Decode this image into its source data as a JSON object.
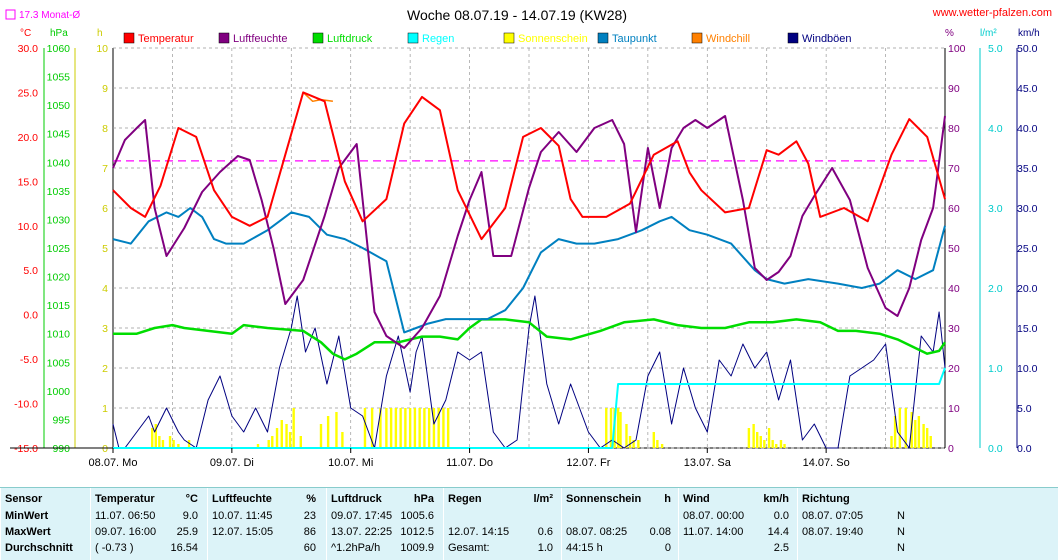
{
  "title": "Woche 08.07.19 - 14.07.19 (KW28)",
  "site": "www.wetter-pfalzen.com",
  "month_avg_label": "17.3 Monat-Ø",
  "left_units": {
    "temp": "°C",
    "pressure": "hPa",
    "sun": "h"
  },
  "right_units": {
    "humidity": "%",
    "rain": "l/m²",
    "wind": "km/h"
  },
  "legend": [
    {
      "label": "Temperatur",
      "color": "#ff0000"
    },
    {
      "label": "Luftfeuchte",
      "color": "#800080"
    },
    {
      "label": "Luftdruck",
      "color": "#00dd00"
    },
    {
      "label": "Regen",
      "color": "#00ffff"
    },
    {
      "label": "Sonnenschein",
      "color": "#ffff00"
    },
    {
      "label": "Taupunkt",
      "color": "#0080c0"
    },
    {
      "label": "Windchill",
      "color": "#ff8000"
    },
    {
      "label": "Windböen",
      "color": "#000080"
    }
  ],
  "chart_data": {
    "type": "line",
    "x_tick_labels": [
      "08.07. Mo",
      "09.07. Di",
      "10.07. Mi",
      "11.07. Do",
      "12.07. Fr",
      "13.07. Sa",
      "14.07. So"
    ],
    "axes": {
      "temp": {
        "ticks": [
          "30.0",
          "25.0",
          "20.0",
          "15.0",
          "10.0",
          "5.0",
          "0.0",
          "-5.0",
          "-10.0",
          "-15.0"
        ],
        "range": [
          -15,
          30
        ],
        "color": "#ff0000"
      },
      "pressure": {
        "ticks": [
          "1060",
          "1055",
          "1050",
          "1045",
          "1040",
          "1035",
          "1030",
          "1025",
          "1020",
          "1015",
          "1010",
          "1005",
          "1000",
          "995",
          "990"
        ],
        "range": [
          990,
          1060
        ],
        "color": "#00cc00"
      },
      "sun": {
        "ticks": [
          "10",
          "9",
          "8",
          "7",
          "6",
          "5",
          "4",
          "3",
          "2",
          "1",
          "0"
        ],
        "range": [
          0,
          10
        ],
        "color": "#cccc00"
      },
      "humidity": {
        "ticks": [
          "100",
          "90",
          "80",
          "70",
          "60",
          "50",
          "40",
          "30",
          "20",
          "10",
          "0"
        ],
        "range": [
          0,
          100
        ],
        "color": "#800080"
      },
      "rain": {
        "ticks": [
          "5.0",
          "4.0",
          "3.0",
          "2.0",
          "1.0",
          "0.0"
        ],
        "range": [
          0,
          5
        ],
        "color": "#00cccc"
      },
      "wind": {
        "ticks": [
          "50.0",
          "45.0",
          "40.0",
          "35.0",
          "30.0",
          "25.0",
          "20.0",
          "15.0",
          "10.0",
          "5.0",
          "0.0"
        ],
        "range": [
          0,
          50
        ],
        "color": "#000080"
      }
    },
    "month_avg_temp": 17.3,
    "x_range_days": [
      0,
      7
    ],
    "series": [
      {
        "name": "Temperatur",
        "color": "#ff0000",
        "axis": "temp",
        "x": [
          0,
          0.15,
          0.27,
          0.4,
          0.55,
          0.7,
          0.85,
          1.0,
          1.15,
          1.3,
          1.45,
          1.6,
          1.78,
          1.95,
          2.1,
          2.3,
          2.45,
          2.6,
          2.75,
          2.9,
          3.1,
          3.3,
          3.45,
          3.6,
          3.75,
          3.85,
          3.95,
          4.15,
          4.35,
          4.55,
          4.75,
          4.85,
          4.95,
          5.15,
          5.35,
          5.5,
          5.6,
          5.75,
          5.85,
          5.95,
          6.15,
          6.35,
          6.55,
          6.7,
          6.85,
          7.0
        ],
        "y": [
          14,
          12,
          11,
          14.5,
          21,
          20,
          14,
          11,
          10,
          11,
          18,
          25,
          24,
          15,
          10.5,
          13,
          21.5,
          24.5,
          23,
          14,
          8.5,
          12,
          20,
          21,
          19,
          13,
          11,
          11,
          12.5,
          18,
          19.5,
          16,
          14,
          11.5,
          12,
          18.5,
          18,
          19.5,
          17,
          11,
          12,
          10.5,
          18,
          22,
          20,
          13
        ]
      },
      {
        "name": "Windchill",
        "color": "#ff8000",
        "axis": "temp",
        "x": [
          1.6,
          1.68,
          1.75,
          1.85
        ],
        "y": [
          25,
          24,
          24.2,
          24
        ]
      },
      {
        "name": "Luftfeuchte",
        "color": "#800080",
        "axis": "humidity",
        "x": [
          0,
          0.1,
          0.2,
          0.27,
          0.35,
          0.45,
          0.6,
          0.75,
          0.9,
          1.05,
          1.15,
          1.25,
          1.35,
          1.45,
          1.6,
          1.78,
          1.9,
          2.05,
          2.2,
          2.3,
          2.45,
          2.6,
          2.75,
          2.9,
          3.0,
          3.1,
          3.2,
          3.35,
          3.5,
          3.6,
          3.75,
          3.9,
          4.05,
          4.2,
          4.3,
          4.4,
          4.5,
          4.6,
          4.7,
          4.8,
          4.9,
          5.0,
          5.15,
          5.3,
          5.4,
          5.5,
          5.6,
          5.7,
          5.8,
          5.9,
          6.05,
          6.2,
          6.35,
          6.5,
          6.6,
          6.7,
          6.8,
          6.9,
          7.0
        ],
        "y": [
          70,
          77,
          80,
          82,
          60,
          48,
          55,
          64,
          69,
          73,
          72,
          62,
          50,
          36,
          42,
          58,
          70,
          76,
          34,
          28,
          25,
          30,
          38,
          53,
          62,
          69,
          48,
          48,
          65,
          74,
          79,
          74,
          80,
          82,
          76,
          54,
          75,
          60,
          75,
          80,
          82,
          80,
          83,
          62,
          45,
          42,
          44,
          48,
          58,
          63,
          70,
          62,
          45,
          35,
          33,
          40,
          52,
          60,
          83
        ]
      },
      {
        "name": "Taupunkt",
        "color": "#0080c0",
        "axis": "temp",
        "x": [
          0,
          0.15,
          0.3,
          0.45,
          0.55,
          0.65,
          0.75,
          0.85,
          0.95,
          1.1,
          1.3,
          1.5,
          1.65,
          1.8,
          1.95,
          2.1,
          2.3,
          2.45,
          2.55,
          2.65,
          2.8,
          3.0,
          3.15,
          3.3,
          3.45,
          3.6,
          3.75,
          3.9,
          4.05,
          4.25,
          4.45,
          4.6,
          4.7,
          4.85,
          5.0,
          5.2,
          5.4,
          5.5,
          5.65,
          5.85,
          6.1,
          6.3,
          6.45,
          6.6,
          6.75,
          6.9,
          7.0
        ],
        "y": [
          8.5,
          8,
          10.5,
          11.5,
          11,
          12,
          11,
          8.5,
          8,
          8,
          9.5,
          11.5,
          11,
          9,
          8.5,
          7.5,
          6,
          -2,
          -1.5,
          -1,
          -0.5,
          -0.5,
          -0.5,
          0.5,
          3,
          7,
          8.5,
          8,
          8,
          8.5,
          9.5,
          10.5,
          11,
          9.5,
          9,
          8,
          5,
          4,
          3.5,
          4,
          3.5,
          3,
          3.5,
          5,
          4,
          5,
          10
        ]
      },
      {
        "name": "Luftdruck",
        "color": "#00dd00",
        "axis": "pressure",
        "x": [
          0,
          0.2,
          0.35,
          0.5,
          0.6,
          0.8,
          1.0,
          1.1,
          1.3,
          1.6,
          1.75,
          1.85,
          1.95,
          2.05,
          2.2,
          2.4,
          2.6,
          2.75,
          2.9,
          3.0,
          3.1,
          3.3,
          3.5,
          3.65,
          3.85,
          4.1,
          4.3,
          4.55,
          4.75,
          4.95,
          5.15,
          5.35,
          5.55,
          5.75,
          5.95,
          6.1,
          6.25,
          6.45,
          6.6,
          6.75,
          6.85,
          6.95,
          7.0
        ],
        "y": [
          1010,
          1010,
          1011,
          1011.5,
          1011,
          1010.5,
          1010,
          1011.5,
          1011,
          1010.5,
          1008.5,
          1006.5,
          1005.5,
          1006.5,
          1008.5,
          1008.5,
          1009.5,
          1009.5,
          1009,
          1011,
          1012.5,
          1012.5,
          1012,
          1009.5,
          1009,
          1010.5,
          1012,
          1012.5,
          1011.5,
          1011,
          1011,
          1012,
          1012,
          1012.5,
          1012,
          1010.5,
          1010.5,
          1010,
          1009,
          1007.5,
          1006.5,
          1007,
          1008.5
        ]
      },
      {
        "name": "Regen",
        "color": "#00ffff",
        "axis": "rain",
        "x": [
          0,
          4.1,
          4.2,
          4.25,
          6.95,
          7.0
        ],
        "y": [
          0,
          0,
          0,
          0.8,
          0.8,
          1.0
        ]
      },
      {
        "name": "Windböen",
        "color": "#000080",
        "axis": "wind",
        "x": [
          0,
          0.05,
          0.1,
          0.2,
          0.3,
          0.35,
          0.45,
          0.55,
          0.6,
          0.7,
          0.8,
          0.9,
          1.0,
          1.1,
          1.2,
          1.3,
          1.4,
          1.5,
          1.55,
          1.62,
          1.7,
          1.8,
          1.9,
          2.0,
          2.1,
          2.2,
          2.3,
          2.4,
          2.5,
          2.55,
          2.6,
          2.7,
          2.8,
          2.9,
          3.0,
          3.1,
          3.2,
          3.3,
          3.4,
          3.5,
          3.55,
          3.65,
          3.75,
          3.85,
          4.0,
          4.1,
          4.2,
          4.3,
          4.4,
          4.5,
          4.6,
          4.7,
          4.8,
          4.9,
          5.0,
          5.1,
          5.2,
          5.3,
          5.4,
          5.5,
          5.6,
          5.7,
          5.8,
          5.9,
          6.0,
          6.1,
          6.2,
          6.3,
          6.4,
          6.5,
          6.6,
          6.7,
          6.8,
          6.9,
          6.95,
          7.0
        ],
        "y": [
          3,
          0,
          0,
          2,
          4,
          2,
          5,
          2,
          1,
          0,
          6,
          9,
          4,
          2,
          5,
          2,
          10,
          15,
          19,
          12,
          15,
          8,
          14,
          5,
          4,
          0,
          9,
          14,
          7,
          12,
          14,
          3,
          6,
          12,
          11,
          12,
          2,
          0,
          1,
          15,
          19,
          8,
          3,
          8,
          2,
          0,
          1,
          0,
          1,
          9,
          12,
          3,
          10,
          5,
          2,
          11,
          9,
          13,
          10,
          12,
          6,
          11,
          1,
          3,
          0,
          0,
          9,
          10,
          11,
          13,
          2,
          0,
          14,
          12,
          17,
          10
        ]
      }
    ],
    "sunshine": {
      "name": "Sonnenschein",
      "color": "#ffff00",
      "axis": "sun",
      "x": [
        0.33,
        0.36,
        0.39,
        0.42,
        0.48,
        0.51,
        0.55,
        0.64,
        1.22,
        1.31,
        1.34,
        1.38,
        1.42,
        1.46,
        1.49,
        1.52,
        1.58,
        1.75,
        1.81,
        1.88,
        1.93,
        2.12,
        2.18,
        2.25,
        2.3,
        2.34,
        2.38,
        2.42,
        2.46,
        2.5,
        2.54,
        2.58,
        2.62,
        2.66,
        2.7,
        2.74,
        2.78,
        2.82,
        4.15,
        4.19,
        4.22,
        4.25,
        4.27,
        4.32,
        4.35,
        4.38,
        4.42,
        4.55,
        4.58,
        4.62,
        5.35,
        5.39,
        5.42,
        5.45,
        5.48,
        5.52,
        5.55,
        5.58,
        5.62,
        5.65,
        6.55,
        6.58,
        6.62,
        6.67,
        6.72,
        6.75,
        6.78,
        6.82,
        6.85,
        6.88
      ],
      "values": [
        0.5,
        0.6,
        0.3,
        0.2,
        0.3,
        0.2,
        0.1,
        0.2,
        0.1,
        0.2,
        0.3,
        0.5,
        0.7,
        0.6,
        0.4,
        1.0,
        0.3,
        0.6,
        0.8,
        0.9,
        0.4,
        1.0,
        1.0,
        1.0,
        1.0,
        1.0,
        1.0,
        1.0,
        1.0,
        1.0,
        1.0,
        1.0,
        1.0,
        1.0,
        1.0,
        1.0,
        1.0,
        1.0,
        1.0,
        1.0,
        1.0,
        1.0,
        0.9,
        0.6,
        0.3,
        0.2,
        0.2,
        0.4,
        0.2,
        0.1,
        0.5,
        0.6,
        0.4,
        0.3,
        0.2,
        0.5,
        0.2,
        0.1,
        0.2,
        0.1,
        0.3,
        0.8,
        1.0,
        1.0,
        0.9,
        0.7,
        0.8,
        0.6,
        0.5,
        0.3
      ]
    }
  },
  "stats": {
    "columns": [
      {
        "h1": "Sensor",
        "h2": "",
        "rows": [
          [
            "MinWert",
            ""
          ],
          [
            "MaxWert",
            ""
          ],
          [
            "Durchschnitt",
            ""
          ]
        ]
      },
      {
        "h1": "Temperatur",
        "h2": "°C",
        "rows": [
          [
            "11.07.  06:50",
            "9.0"
          ],
          [
            "09.07.  16:00",
            "25.9"
          ],
          [
            "( -0.73 )",
            "16.54"
          ]
        ]
      },
      {
        "h1": "Luftfeuchte",
        "h2": "%",
        "rows": [
          [
            "10.07.  11:45",
            "23"
          ],
          [
            "12.07.  15:05",
            "86"
          ],
          [
            "",
            "60"
          ]
        ]
      },
      {
        "h1": "Luftdruck",
        "h2": "hPa",
        "rows": [
          [
            "09.07.  17:45",
            "1005.6"
          ],
          [
            "13.07.  22:25",
            "1012.5"
          ],
          [
            "^1.2hPa/h",
            "1009.9"
          ]
        ]
      },
      {
        "h1": "Regen",
        "h2": "l/m²",
        "rows": [
          [
            "",
            ""
          ],
          [
            "12.07.  14:15",
            "0.6"
          ],
          [
            "Gesamt:",
            "1.0"
          ]
        ]
      },
      {
        "h1": "Sonnenschein",
        "h2": "h",
        "rows": [
          [
            "",
            ""
          ],
          [
            "08.07.  08:25",
            "0.08"
          ],
          [
            "44:15 h",
            "0"
          ]
        ]
      },
      {
        "h1": "Wind",
        "h2": "km/h",
        "rows": [
          [
            "08.07.  00:00",
            "0.0"
          ],
          [
            "11.07.  14:00",
            "14.4"
          ],
          [
            "",
            "2.5"
          ]
        ]
      },
      {
        "h1": "Richtung",
        "h2": "",
        "rows": [
          [
            "08.07.  07:05",
            "N"
          ],
          [
            "08.07.  19:40",
            "N"
          ],
          [
            "",
            "N"
          ]
        ]
      }
    ]
  }
}
